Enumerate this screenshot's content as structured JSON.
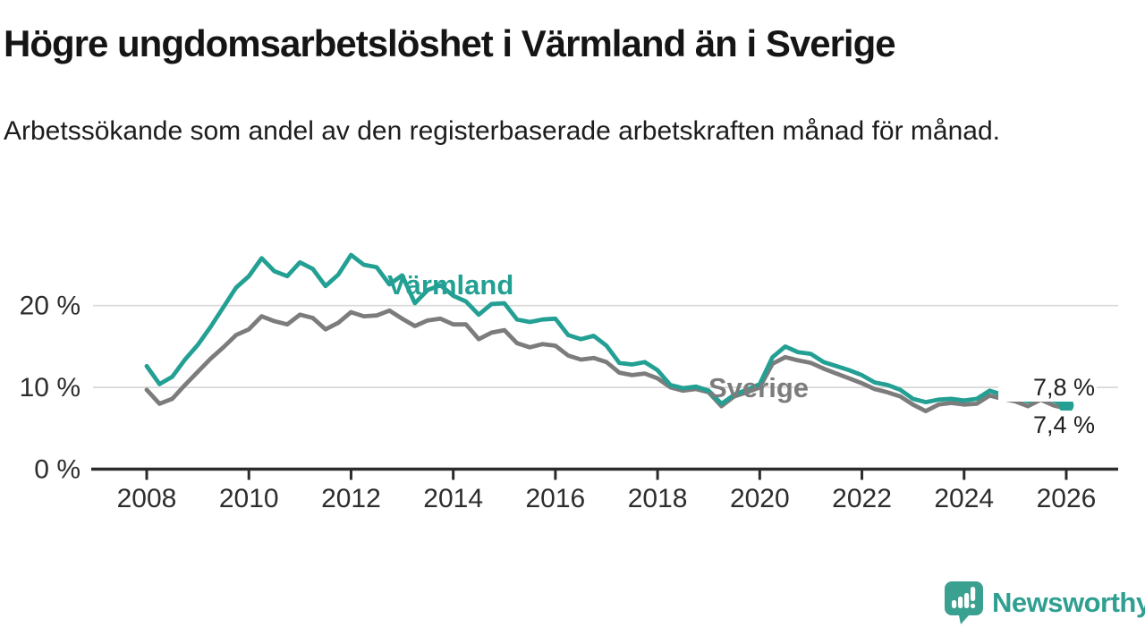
{
  "header": {
    "title": "Högre ungdomsarbetslöshet i Värmland än i Sverige",
    "subtitle": "Arbetssökande som andel av den registerbaserade arbetskraften månad för månad."
  },
  "chart_data": {
    "type": "line",
    "title": "Högre ungdomsarbetslöshet i Värmland än i Sverige",
    "subtitle": "Arbetssökande som andel av den registerbaserade arbetskraften månad för månad.",
    "xlabel": "",
    "ylabel": "",
    "unit": "%",
    "xlim": [
      2007.5,
      2026.6
    ],
    "ylim": [
      0,
      28
    ],
    "grid": "horizontal",
    "x_ticks": [
      {
        "value": 2008,
        "label": "2008"
      },
      {
        "value": 2010,
        "label": "2010"
      },
      {
        "value": 2012,
        "label": "2012"
      },
      {
        "value": 2014,
        "label": "2014"
      },
      {
        "value": 2016,
        "label": "2016"
      },
      {
        "value": 2018,
        "label": "2018"
      },
      {
        "value": 2020,
        "label": "2020"
      },
      {
        "value": 2022,
        "label": "2022"
      },
      {
        "value": 2024,
        "label": "2024"
      },
      {
        "value": 2026,
        "label": "2026"
      }
    ],
    "y_ticks": [
      {
        "value": 0,
        "label": "0 %"
      },
      {
        "value": 10,
        "label": "10 %"
      },
      {
        "value": 20,
        "label": "20 %"
      }
    ],
    "x": [
      2008,
      2008.25,
      2008.5,
      2008.75,
      2009,
      2009.25,
      2009.5,
      2009.75,
      2010,
      2010.25,
      2010.5,
      2010.75,
      2011,
      2011.25,
      2011.5,
      2011.75,
      2012,
      2012.25,
      2012.5,
      2012.75,
      2013,
      2013.25,
      2013.5,
      2013.75,
      2014,
      2014.25,
      2014.5,
      2014.75,
      2015,
      2015.25,
      2015.5,
      2015.75,
      2016,
      2016.25,
      2016.5,
      2016.75,
      2017,
      2017.25,
      2017.5,
      2017.75,
      2018,
      2018.25,
      2018.5,
      2018.75,
      2019,
      2019.25,
      2019.5,
      2019.75,
      2020,
      2020.25,
      2020.5,
      2020.75,
      2021,
      2021.25,
      2021.5,
      2021.75,
      2022,
      2022.25,
      2022.5,
      2022.75,
      2023,
      2023.25,
      2023.5,
      2023.75,
      2024,
      2024.25,
      2024.5,
      2024.75,
      2025,
      2025.25,
      2025.5,
      2025.75,
      2026
    ],
    "series": [
      {
        "name": "Värmland",
        "color": "#23a093",
        "end_value": 7.8,
        "values": [
          12.6,
          10.4,
          11.3,
          13.4,
          15.2,
          17.4,
          19.8,
          22.2,
          23.6,
          25.8,
          24.2,
          23.6,
          25.3,
          24.5,
          22.4,
          23.8,
          26.2,
          25.0,
          24.7,
          22.6,
          23.7,
          20.3,
          21.9,
          22.5,
          21.2,
          20.5,
          18.9,
          20.2,
          20.3,
          18.3,
          18.0,
          18.3,
          18.4,
          16.4,
          15.9,
          16.3,
          15.1,
          13.0,
          12.8,
          13.1,
          12.1,
          10.3,
          9.9,
          10.1,
          9.6,
          8.0,
          9.1,
          9.7,
          10.4,
          13.7,
          15.0,
          14.3,
          14.1,
          13.1,
          12.6,
          12.1,
          11.5,
          10.6,
          10.3,
          9.7,
          8.6,
          8.2,
          8.5,
          8.6,
          8.4,
          8.6,
          9.6,
          9.1,
          8.8,
          8.3,
          8.9,
          8.4,
          7.8
        ]
      },
      {
        "name": "Sverige",
        "color": "#7c7c7c",
        "end_value": 7.4,
        "values": [
          9.7,
          8.0,
          8.6,
          10.3,
          11.9,
          13.5,
          14.9,
          16.4,
          17.1,
          18.7,
          18.1,
          17.7,
          18.9,
          18.5,
          17.1,
          17.9,
          19.2,
          18.7,
          18.8,
          19.4,
          18.4,
          17.5,
          18.2,
          18.4,
          17.7,
          17.7,
          15.9,
          16.7,
          17.0,
          15.4,
          14.9,
          15.3,
          15.1,
          13.9,
          13.4,
          13.6,
          13.1,
          11.8,
          11.5,
          11.7,
          11.1,
          10.0,
          9.6,
          9.8,
          9.4,
          7.7,
          8.9,
          9.4,
          10.0,
          12.9,
          13.7,
          13.3,
          13.0,
          12.3,
          11.7,
          11.1,
          10.5,
          9.8,
          9.4,
          8.9,
          7.9,
          7.1,
          7.9,
          8.1,
          7.9,
          8.0,
          9.0,
          8.6,
          8.3,
          7.7,
          8.5,
          7.8,
          7.4
        ]
      }
    ],
    "annotations": {
      "varmland_label": {
        "text": "Värmland",
        "color": "#23a093"
      },
      "sverige_label": {
        "text": "Sverige",
        "color": "#7c7c7c"
      },
      "end_value_top": {
        "text": "7,8 %"
      },
      "end_value_bottom": {
        "text": "7,4 %"
      }
    },
    "colors": {
      "grid": "#d9d9d9",
      "axis": "#2b2b2b",
      "tick_text": "#2d2d2d"
    }
  },
  "branding": {
    "logo_text": "Newsworthy",
    "logo_icon": "newsworthy-speech-bubble-bar-chart-icon",
    "logo_color": "#3aa090"
  }
}
